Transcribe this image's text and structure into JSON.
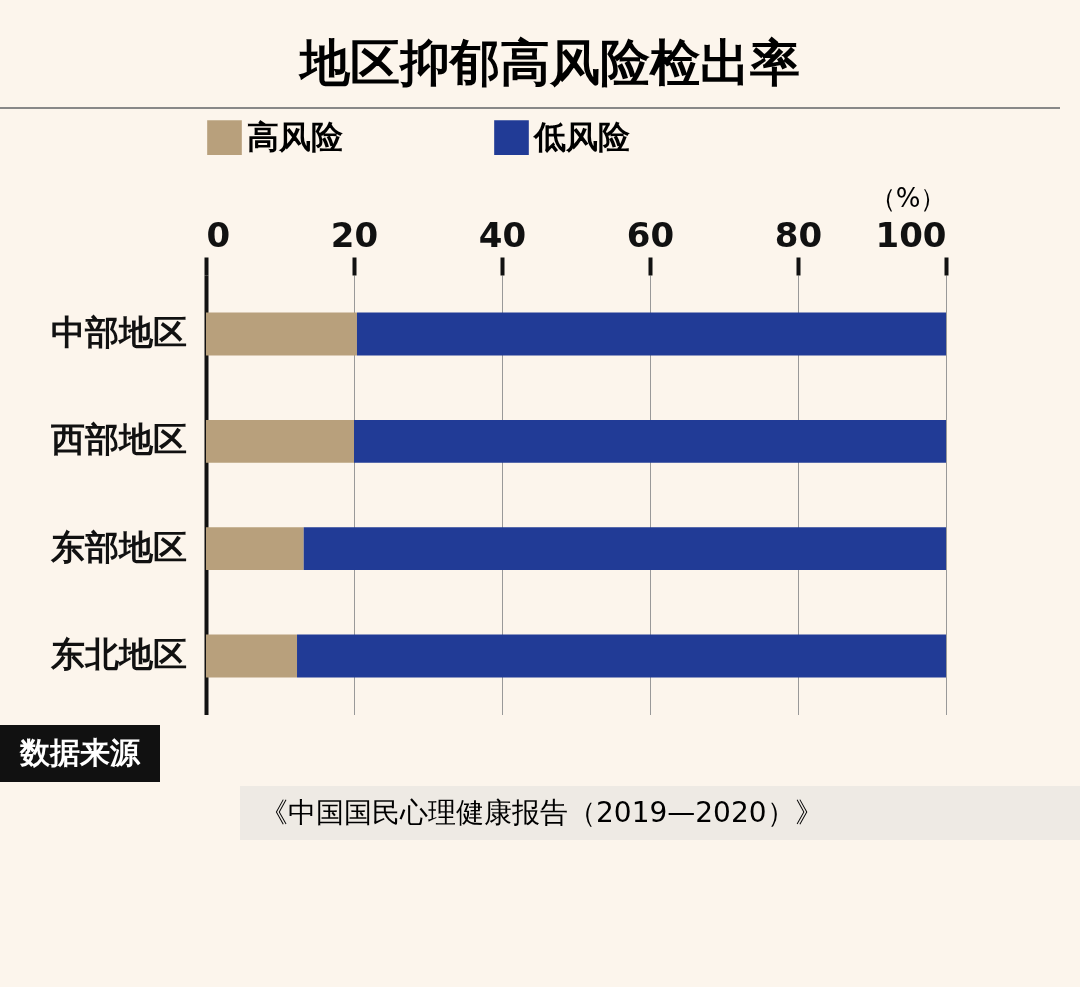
{
  "chart_data": {
    "type": "bar",
    "orientation": "horizontal",
    "stacked": true,
    "title": "地区抑郁高风险检出率",
    "xlabel": "（%）",
    "categories": [
      "中部地区",
      "西部地区",
      "东部地区",
      "东北地区"
    ],
    "series": [
      {
        "name": "高风险",
        "color": "#b8a07c",
        "values": [
          20.4,
          20.0,
          13.2,
          12.3
        ]
      },
      {
        "name": "低风险",
        "color": "#213b96",
        "values": [
          79.6,
          80.0,
          86.8,
          87.7
        ]
      }
    ],
    "xlim": [
      0,
      100
    ],
    "xticks": [
      0,
      20,
      40,
      60,
      80,
      100
    ],
    "grid": "x",
    "legend": "top",
    "annotations": [
      "数据来源",
      "《中国国民心理健康报告（2019—2020）》"
    ]
  }
}
